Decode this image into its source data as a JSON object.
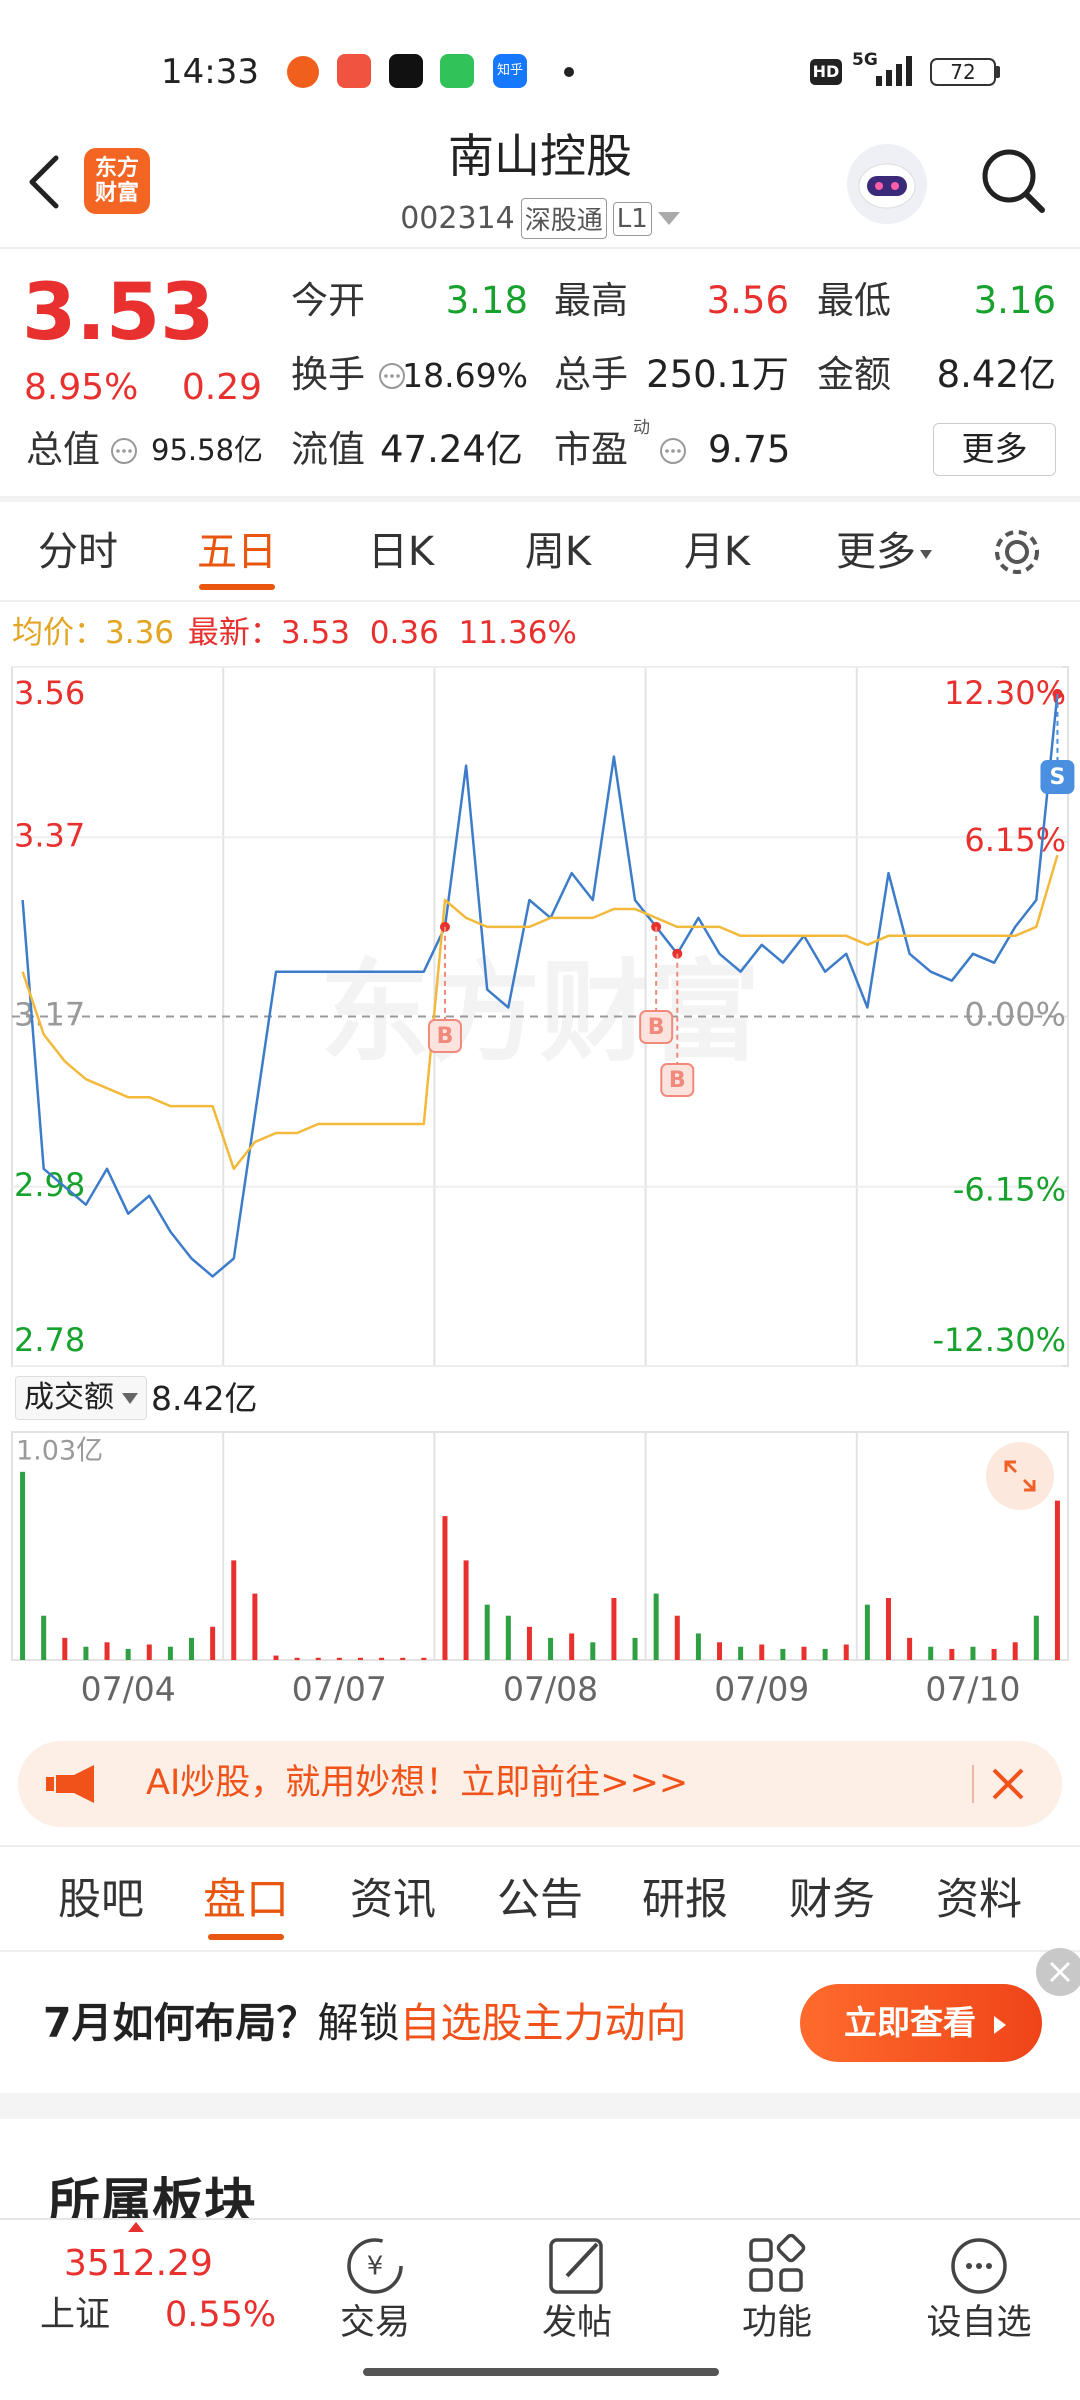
{
  "status_bar": {
    "time": "14:33",
    "zhihu": "知乎",
    "hd": "HD",
    "network": "5G",
    "battery": "72"
  },
  "header": {
    "logo_lines": [
      "东方",
      "财富"
    ],
    "title": "南山控股",
    "code": "002314",
    "badges": [
      "深股通",
      "L1"
    ]
  },
  "quote": {
    "price": "3.53",
    "change_pct": "8.95%",
    "change": "0.29",
    "stats": [
      {
        "label": "今开",
        "value": "3.18"
      },
      {
        "label": "最高",
        "value": "3.56"
      },
      {
        "label": "最低",
        "value": "3.16"
      },
      {
        "label": "换手",
        "value": "18.69%"
      },
      {
        "label": "总手",
        "value": "250.1万"
      },
      {
        "label": "金额",
        "value": "8.42亿"
      },
      {
        "label": "总值",
        "value": "95.58亿"
      },
      {
        "label": "流值",
        "value": "47.24亿"
      },
      {
        "label": "市盈",
        "sup": "动",
        "value": "9.75"
      }
    ],
    "more_button": "更多"
  },
  "chart_tabs": {
    "items": [
      "分时",
      "五日",
      "日K",
      "周K",
      "月K",
      "更多"
    ],
    "active": 1
  },
  "info_line": {
    "avg_label": "均价：",
    "avg": "3.36",
    "latest_label": "最新：",
    "latest": "3.53",
    "change": "0.36",
    "change_pct": "11.36%"
  },
  "chart_data": [
    {
      "type": "line",
      "watermark": "东方财富",
      "categories": [
        null,
        null,
        null,
        null,
        null,
        "07/04",
        null,
        null,
        null,
        null,
        null,
        null,
        null,
        null,
        null,
        "07/07",
        null,
        null,
        null,
        null,
        null,
        null,
        null,
        null,
        null,
        "07/08",
        null,
        null,
        null,
        null,
        null,
        null,
        null,
        null,
        null,
        "07/09",
        null,
        null,
        null,
        null,
        null,
        null,
        null,
        null,
        null,
        "07/10",
        null,
        null,
        null,
        null
      ],
      "ylim": [
        2.78,
        3.56
      ],
      "yticks": [
        3.56,
        3.37,
        3.17,
        2.98,
        2.78
      ],
      "y2lim": [
        -12.3,
        12.3
      ],
      "y2ticks": [
        {
          "value": 12.3,
          "label": "12.30%"
        },
        {
          "value": 6.15,
          "label": "6.15%"
        },
        {
          "value": 0,
          "label": "0.00%"
        },
        {
          "value": -6.15,
          "label": "-6.15%"
        },
        {
          "value": -12.3,
          "label": "-12.30%"
        }
      ],
      "grid": true,
      "series": [
        {
          "color": "#3d7cc9",
          "values": [
            3.3,
            3.0,
            2.98,
            2.96,
            3.0,
            2.95,
            2.97,
            2.93,
            2.9,
            2.88,
            2.9,
            3.06,
            3.22,
            3.22,
            3.22,
            3.22,
            3.22,
            3.22,
            3.22,
            3.22,
            3.27,
            3.45,
            3.2,
            3.18,
            3.3,
            3.28,
            3.33,
            3.3,
            3.46,
            3.3,
            3.27,
            3.24,
            3.28,
            3.24,
            3.22,
            3.25,
            3.23,
            3.26,
            3.22,
            3.24,
            3.18,
            3.33,
            3.24,
            3.22,
            3.21,
            3.24,
            3.23,
            3.27,
            3.3,
            3.53
          ]
        },
        {
          "color": "#f2b93b",
          "values": [
            3.22,
            3.15,
            3.12,
            3.1,
            3.09,
            3.08,
            3.08,
            3.07,
            3.07,
            3.07,
            3.0,
            3.03,
            3.04,
            3.04,
            3.05,
            3.05,
            3.05,
            3.05,
            3.05,
            3.05,
            3.3,
            3.28,
            3.27,
            3.27,
            3.27,
            3.28,
            3.28,
            3.28,
            3.29,
            3.29,
            3.28,
            3.27,
            3.27,
            3.27,
            3.26,
            3.26,
            3.26,
            3.26,
            3.26,
            3.26,
            3.25,
            3.26,
            3.26,
            3.26,
            3.26,
            3.26,
            3.26,
            3.26,
            3.27,
            3.35
          ]
        }
      ],
      "markers": [
        {
          "label": "B",
          "color": "#f08a7c"
        },
        {
          "label": "B",
          "color": "#f08a7c"
        },
        {
          "label": "B",
          "color": "#f08a7c"
        },
        {
          "label": "S",
          "color": "#4a8fe0"
        }
      ]
    },
    {
      "type": "bar",
      "title": "成交额",
      "total": "8.42亿",
      "ylim": [
        0,
        1.03
      ],
      "yticks": [
        {
          "value": 1.03,
          "label": "1.03亿"
        }
      ],
      "values": [
        0.85,
        0.2,
        0.1,
        0.06,
        0.08,
        0.05,
        0.07,
        0.06,
        0.1,
        0.15,
        0.45,
        0.3,
        0.02,
        0.01,
        0.01,
        0.01,
        0.01,
        0.01,
        0.01,
        0.01,
        0.65,
        0.45,
        0.25,
        0.2,
        0.15,
        0.1,
        0.12,
        0.08,
        0.28,
        0.1,
        0.3,
        0.2,
        0.12,
        0.08,
        0.06,
        0.07,
        0.05,
        0.06,
        0.05,
        0.07,
        0.25,
        0.28,
        0.1,
        0.06,
        0.05,
        0.06,
        0.05,
        0.08,
        0.2,
        0.72
      ],
      "colors": [
        "#2ea043",
        "#2ea043",
        "#e8302e",
        "#2ea043",
        "#e8302e",
        "#2ea043",
        "#e8302e",
        "#2ea043",
        "#2ea043",
        "#e8302e",
        "#e8302e",
        "#e8302e",
        "#e8302e",
        "#e8302e",
        "#e8302e",
        "#e8302e",
        "#e8302e",
        "#e8302e",
        "#e8302e",
        "#e8302e",
        "#e8302e",
        "#e8302e",
        "#2ea043",
        "#2ea043",
        "#e8302e",
        "#2ea043",
        "#e8302e",
        "#2ea043",
        "#e8302e",
        "#2ea043",
        "#2ea043",
        "#e8302e",
        "#2ea043",
        "#e8302e",
        "#2ea043",
        "#e8302e",
        "#2ea043",
        "#e8302e",
        "#2ea043",
        "#e8302e",
        "#2ea043",
        "#e8302e",
        "#e8302e",
        "#2ea043",
        "#e8302e",
        "#2ea043",
        "#e8302e",
        "#e8302e",
        "#2ea043",
        "#e8302e"
      ]
    }
  ],
  "ad_banner": {
    "text": "AI炒股，就用妙想！立即前往>>>"
  },
  "section_tabs": {
    "items": [
      "股吧",
      "盘口",
      "资讯",
      "公告",
      "研报",
      "财务",
      "资料"
    ],
    "active": 1
  },
  "promo": {
    "lead": "7月如何布局？",
    "verb": "解锁",
    "highlight": "自选股主力动向",
    "button": "立即查看"
  },
  "section_title": "所属板块",
  "bottom_nav": {
    "index": {
      "value": "3512.29",
      "name": "上证",
      "change": "0.55%"
    },
    "items": [
      "交易",
      "发帖",
      "功能",
      "设自选"
    ]
  }
}
